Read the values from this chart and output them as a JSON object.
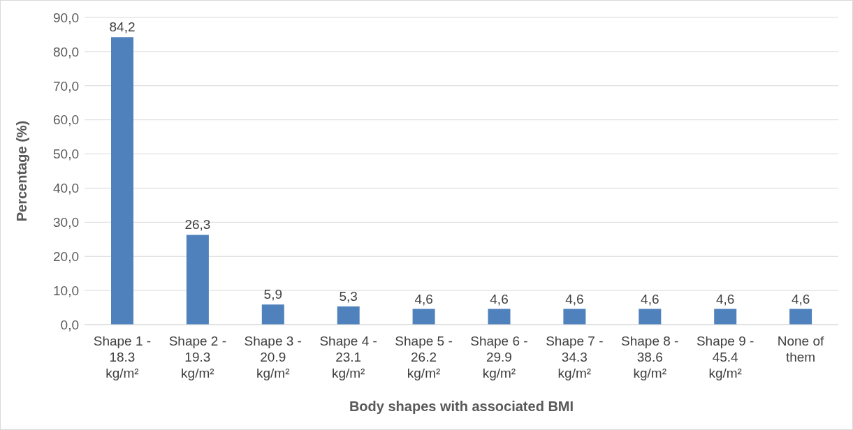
{
  "chart_data": {
    "type": "bar",
    "xlabel": "Body shapes with associated BMI",
    "ylabel": "Percentage (%)",
    "categories": [
      "Shape 1 - 18.3 kg/m²",
      "Shape 2 - 19.3 kg/m²",
      "Shape 3 - 20.9 kg/m²",
      "Shape 4 - 23.1 kg/m²",
      "Shape 5 - 26.2 kg/m²",
      "Shape 6 - 29.9 kg/m²",
      "Shape 7 - 34.3 kg/m²",
      "Shape 8 - 38.6 kg/m²",
      "Shape 9 - 45.4 kg/m²",
      "None of them"
    ],
    "values": [
      84.2,
      26.3,
      5.9,
      5.3,
      4.6,
      4.6,
      4.6,
      4.6,
      4.6,
      4.6
    ],
    "value_labels": [
      "84,2",
      "26,3",
      "5,9",
      "5,3",
      "4,6",
      "4,6",
      "4,6",
      "4,6",
      "4,6",
      "4,6"
    ],
    "color": "#4f81bd",
    "ylim": [
      0,
      90
    ],
    "yticks": [
      {
        "value": 0,
        "label": "0,0"
      },
      {
        "value": 10,
        "label": "10,0"
      },
      {
        "value": 20,
        "label": "20,0"
      },
      {
        "value": 30,
        "label": "30,0"
      },
      {
        "value": 40,
        "label": "40,0"
      },
      {
        "value": 50,
        "label": "50,0"
      },
      {
        "value": 60,
        "label": "60,0"
      },
      {
        "value": 70,
        "label": "70,0"
      },
      {
        "value": 80,
        "label": "80,0"
      },
      {
        "value": 90,
        "label": "90,0"
      }
    ],
    "grid": "y"
  }
}
